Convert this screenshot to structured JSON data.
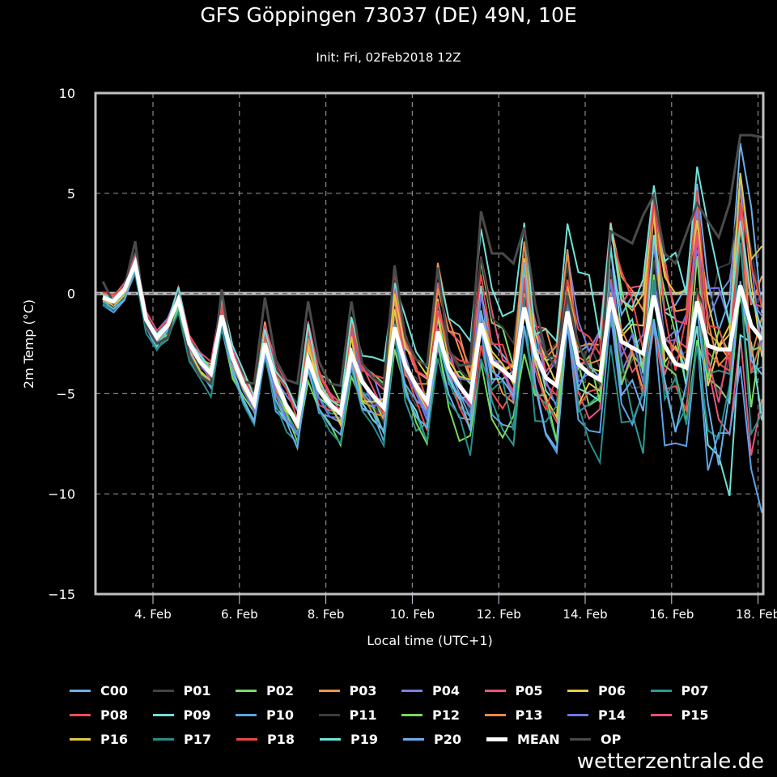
{
  "chart_data": {
    "type": "line",
    "title": "GFS Göppingen 73037 (DE) 49N, 10E",
    "subtitle": "Init: Fri, 02Feb2018 12Z",
    "xlabel": "Local time (UTC+1)",
    "ylabel": "2m Temp (°C)",
    "ylim": [
      -15,
      10
    ],
    "xlim_days": [
      2.65,
      18.08
    ],
    "yticks": [
      10,
      5,
      0,
      -5,
      -10,
      -15
    ],
    "ytick_labels": [
      "10",
      "5",
      "0",
      "−5",
      "−10",
      "−15"
    ],
    "xticks_days": [
      4,
      6,
      8,
      10,
      12,
      14,
      16,
      18
    ],
    "xtick_labels": [
      "4. Feb",
      "6. Feb",
      "8. Feb",
      "10. Feb",
      "12. Feb",
      "14. Feb",
      "16. Feb",
      "18. Feb"
    ],
    "grid": true,
    "x_start_day": 2.84,
    "x_step_days": 0.25,
    "mean": [
      -0.2,
      -0.4,
      0.2,
      1.5,
      -1.3,
      -2.2,
      -1.6,
      -0.3,
      -2.5,
      -3.4,
      -4.0,
      -1.1,
      -3.2,
      -4.5,
      -5.5,
      -2.5,
      -4.4,
      -5.6,
      -6.5,
      -3.3,
      -4.8,
      -5.5,
      -6.0,
      -3.0,
      -4.4,
      -5.1,
      -5.7,
      -1.7,
      -3.6,
      -4.6,
      -5.4,
      -1.9,
      -3.7,
      -4.6,
      -5.3,
      -1.5,
      -3.4,
      -3.8,
      -4.3,
      -0.7,
      -3.0,
      -4.2,
      -4.6,
      -0.9,
      -3.5,
      -4.0,
      -4.3,
      -0.2,
      -2.4,
      -2.7,
      -3.0,
      -0.1,
      -2.6,
      -3.5,
      -3.7,
      -0.4,
      -2.6,
      -2.8,
      -2.8,
      0.4,
      -1.6,
      -2.3
    ],
    "op": [
      0.6,
      -0.5,
      0.3,
      2.6,
      -1.6,
      -2.5,
      -2.2,
      0.0,
      -3.1,
      -4.1,
      -4.5,
      0.2,
      -3.4,
      -4.4,
      -4.5,
      -0.2,
      -3.3,
      -4.3,
      -4.5,
      -0.4,
      -3.4,
      -4.5,
      -4.6,
      -0.4,
      -3.5,
      -4.2,
      -4.6,
      1.4,
      -2.2,
      -3.3,
      -3.6,
      1.3,
      -2.8,
      -3.6,
      -3.5,
      4.1,
      2.0,
      2.0,
      1.5,
      3.3,
      -0.5,
      -3.0,
      -3.7,
      -0.1,
      -2.5,
      -3.8,
      -4.5,
      3.1,
      2.8,
      2.5,
      3.9,
      4.9,
      2.0,
      1.5,
      3.0,
      4.5,
      3.6,
      2.8,
      4.5,
      7.9,
      7.9,
      7.8
    ],
    "series": [
      {
        "name": "C00",
        "color": "#6ab0ea"
      },
      {
        "name": "P01",
        "color": "#444444"
      },
      {
        "name": "P02",
        "color": "#7bdb6a"
      },
      {
        "name": "P03",
        "color": "#ef944a"
      },
      {
        "name": "P04",
        "color": "#7b80e0"
      },
      {
        "name": "P05",
        "color": "#e8557a"
      },
      {
        "name": "P06",
        "color": "#e4cc4a"
      },
      {
        "name": "P07",
        "color": "#2a9a93"
      },
      {
        "name": "P08",
        "color": "#ec5050"
      },
      {
        "name": "P09",
        "color": "#6ee0d6"
      },
      {
        "name": "P10",
        "color": "#5ea2e6"
      },
      {
        "name": "P11",
        "color": "#3c3c3c"
      },
      {
        "name": "P12",
        "color": "#74db5c"
      },
      {
        "name": "P13",
        "color": "#e88a46"
      },
      {
        "name": "P14",
        "color": "#6e76e4"
      },
      {
        "name": "P15",
        "color": "#e4507a"
      },
      {
        "name": "P16",
        "color": "#e0c844"
      },
      {
        "name": "P17",
        "color": "#268e8a"
      },
      {
        "name": "P18",
        "color": "#e84848"
      },
      {
        "name": "P19",
        "color": "#70e2d8"
      },
      {
        "name": "P20",
        "color": "#6aaeea"
      },
      {
        "name": "MEAN",
        "color": "#ffffff"
      },
      {
        "name": "OP",
        "color": "#4a4a4a"
      }
    ]
  },
  "legend": {
    "rows": [
      [
        "C00",
        "P01",
        "P02",
        "P03",
        "P04",
        "P05",
        "P06",
        "P07"
      ],
      [
        "P08",
        "P09",
        "P10",
        "P11",
        "P12",
        "P13",
        "P14",
        "P15"
      ],
      [
        "P16",
        "P17",
        "P18",
        "P19",
        "P20",
        "MEAN",
        "OP"
      ]
    ]
  },
  "watermark": "wetterzentrale.de"
}
